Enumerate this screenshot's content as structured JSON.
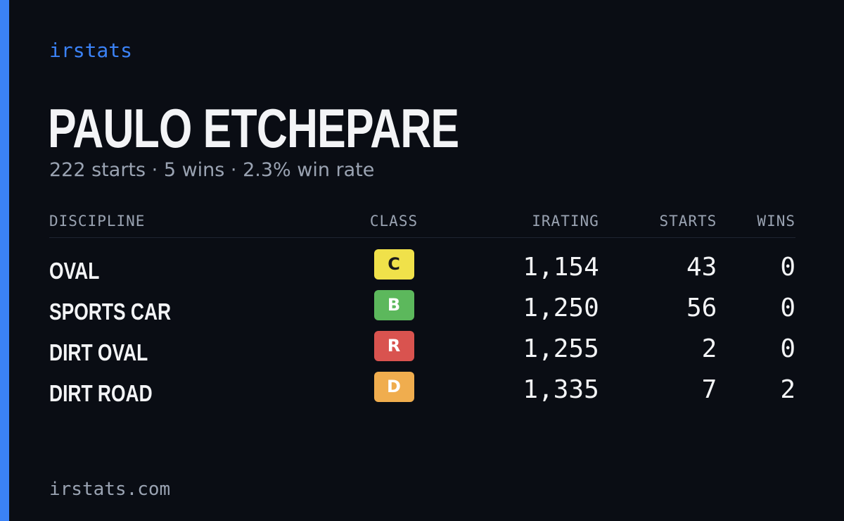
{
  "brand": "irstats",
  "driver": {
    "name": "PAULO ETCHEPARE",
    "summary": "222 starts · 5 wins · 2.3% win rate"
  },
  "table": {
    "headers": {
      "discipline": "DISCIPLINE",
      "class": "CLASS",
      "irating": "IRATING",
      "starts": "STARTS",
      "wins": "WINS"
    },
    "rows": [
      {
        "discipline": "OVAL",
        "class": "C",
        "class_bg": "#f0e14a",
        "class_fg": "#1a1a1a",
        "irating": "1,154",
        "starts": "43",
        "wins": "0"
      },
      {
        "discipline": "SPORTS CAR",
        "class": "B",
        "class_bg": "#5cb85c",
        "class_fg": "#ffffff",
        "irating": "1,250",
        "starts": "56",
        "wins": "0"
      },
      {
        "discipline": "DIRT OVAL",
        "class": "R",
        "class_bg": "#d9534f",
        "class_fg": "#ffffff",
        "irating": "1,255",
        "starts": "2",
        "wins": "0"
      },
      {
        "discipline": "DIRT ROAD",
        "class": "D",
        "class_bg": "#f0ad4e",
        "class_fg": "#ffffff",
        "irating": "1,335",
        "starts": "7",
        "wins": "2"
      }
    ]
  },
  "footer": "irstats.com",
  "colors": {
    "accent": "#3b82f6",
    "background": "#0a0d14",
    "muted_text": "#9aa3b2"
  }
}
